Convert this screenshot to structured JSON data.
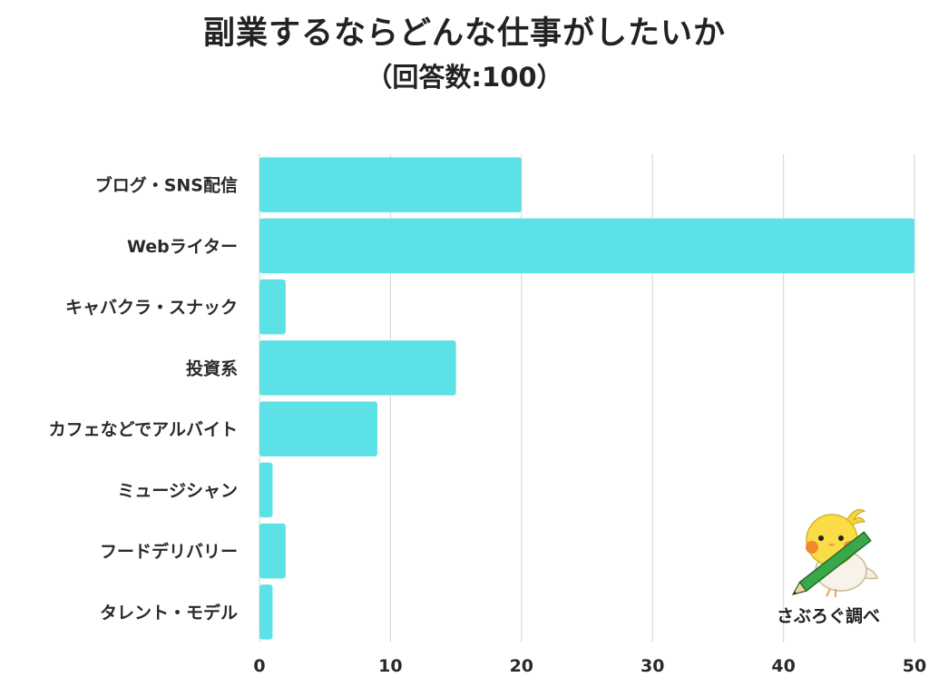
{
  "chart_data": {
    "type": "bar",
    "orientation": "horizontal",
    "title": "副業するならどんな仕事がしたいか",
    "subtitle": "（回答数:100）",
    "categories": [
      "ブログ・SNS配信",
      "Webライター",
      "キャバクラ・スナック",
      "投資系",
      "カフェなどでアルバイト",
      "ミュージシャン",
      "フードデリバリー",
      "タレント・モデル"
    ],
    "values": [
      20,
      50,
      2,
      15,
      9,
      1,
      2,
      1
    ],
    "xlim": [
      0,
      50
    ],
    "xticks": [
      0,
      10,
      20,
      30,
      40,
      50
    ],
    "xticks_labels": [
      "0",
      "10",
      "20",
      "30",
      "40",
      "50"
    ],
    "grid": true,
    "bar_color": "#5ce1e6",
    "grid_color": "#d9d9d9"
  },
  "credit": "さぶろぐ調べ",
  "mascot_icon": "bird-with-pencil-icon"
}
